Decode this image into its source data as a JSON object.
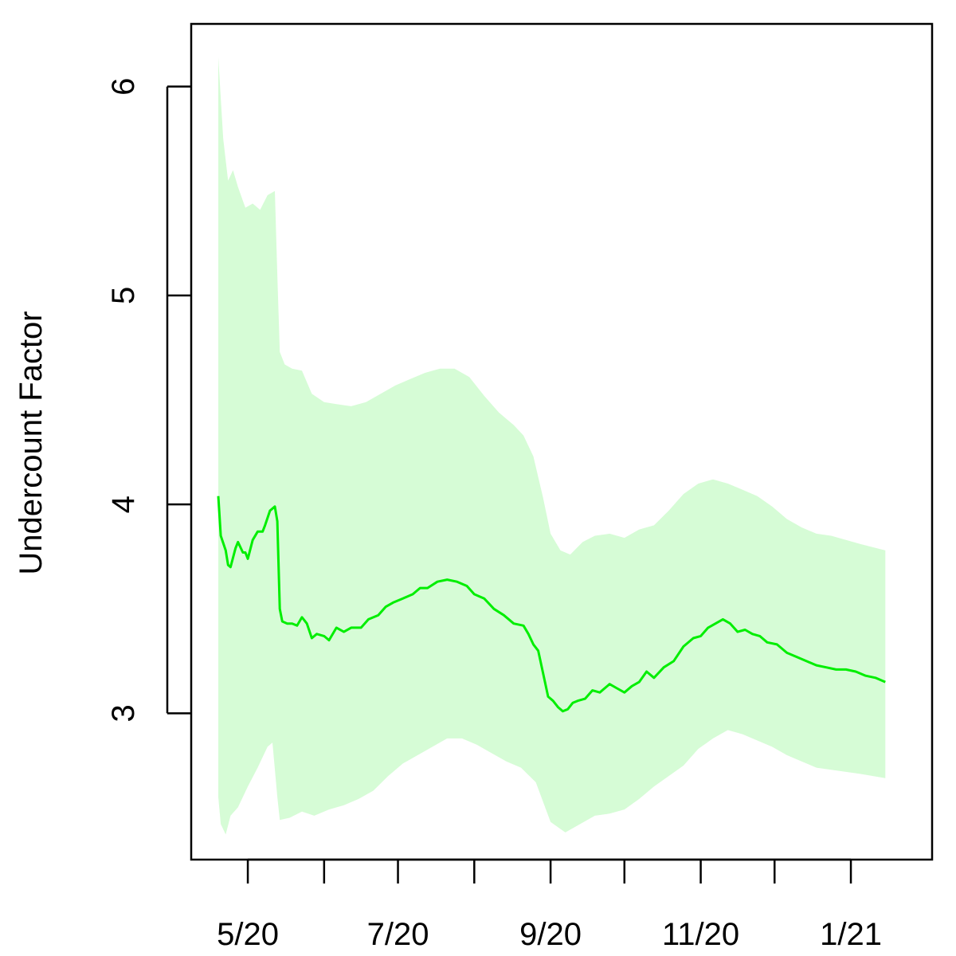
{
  "chart_data": {
    "type": "area",
    "title": "",
    "xlabel": "",
    "ylabel": "Undercount Factor",
    "ylim": [
      2.3,
      6.3
    ],
    "xlim": [
      "2020-04-08",
      "2021-02-03"
    ],
    "y_ticks": [
      3,
      4,
      5,
      6
    ],
    "x_ticks": [
      {
        "date": "2020-05-01",
        "label": "5/20"
      },
      {
        "date": "2020-06-01",
        "label": ""
      },
      {
        "date": "2020-07-01",
        "label": "7/20"
      },
      {
        "date": "2020-08-01",
        "label": ""
      },
      {
        "date": "2020-09-01",
        "label": "9/20"
      },
      {
        "date": "2020-10-01",
        "label": ""
      },
      {
        "date": "2020-11-01",
        "label": "11/20"
      },
      {
        "date": "2020-12-01",
        "label": ""
      },
      {
        "date": "2021-01-01",
        "label": "1/21"
      }
    ],
    "grid": false,
    "legend": "none",
    "colors": {
      "line": "#00ee00",
      "band": "#d6fcd6",
      "axis": "#000000"
    },
    "series": [
      {
        "role": "estimate",
        "points": [
          [
            "2020-04-19",
            4.04
          ],
          [
            "2020-04-20",
            3.85
          ],
          [
            "2020-04-22",
            3.78
          ],
          [
            "2020-04-23",
            3.71
          ],
          [
            "2020-04-24",
            3.7
          ],
          [
            "2020-04-26",
            3.79
          ],
          [
            "2020-04-27",
            3.82
          ],
          [
            "2020-04-29",
            3.77
          ],
          [
            "2020-04-30",
            3.77
          ],
          [
            "2020-05-01",
            3.74
          ],
          [
            "2020-05-03",
            3.83
          ],
          [
            "2020-05-05",
            3.87
          ],
          [
            "2020-05-07",
            3.87
          ],
          [
            "2020-05-08",
            3.9
          ],
          [
            "2020-05-10",
            3.97
          ],
          [
            "2020-05-12",
            3.99
          ],
          [
            "2020-05-13",
            3.92
          ],
          [
            "2020-05-14",
            3.5
          ],
          [
            "2020-05-15",
            3.44
          ],
          [
            "2020-05-17",
            3.43
          ],
          [
            "2020-05-19",
            3.43
          ],
          [
            "2020-05-21",
            3.42
          ],
          [
            "2020-05-23",
            3.46
          ],
          [
            "2020-05-25",
            3.43
          ],
          [
            "2020-05-27",
            3.36
          ],
          [
            "2020-05-29",
            3.38
          ],
          [
            "2020-06-01",
            3.37
          ],
          [
            "2020-06-03",
            3.35
          ],
          [
            "2020-06-06",
            3.41
          ],
          [
            "2020-06-09",
            3.39
          ],
          [
            "2020-06-12",
            3.41
          ],
          [
            "2020-06-16",
            3.41
          ],
          [
            "2020-06-19",
            3.45
          ],
          [
            "2020-06-23",
            3.47
          ],
          [
            "2020-06-26",
            3.51
          ],
          [
            "2020-06-29",
            3.53
          ],
          [
            "2020-07-03",
            3.55
          ],
          [
            "2020-07-07",
            3.57
          ],
          [
            "2020-07-10",
            3.6
          ],
          [
            "2020-07-13",
            3.6
          ],
          [
            "2020-07-17",
            3.63
          ],
          [
            "2020-07-21",
            3.64
          ],
          [
            "2020-07-25",
            3.63
          ],
          [
            "2020-07-29",
            3.61
          ],
          [
            "2020-08-01",
            3.57
          ],
          [
            "2020-08-05",
            3.55
          ],
          [
            "2020-08-09",
            3.5
          ],
          [
            "2020-08-13",
            3.47
          ],
          [
            "2020-08-17",
            3.43
          ],
          [
            "2020-08-21",
            3.42
          ],
          [
            "2020-08-23",
            3.38
          ],
          [
            "2020-08-25",
            3.33
          ],
          [
            "2020-08-27",
            3.3
          ],
          [
            "2020-08-29",
            3.19
          ],
          [
            "2020-08-31",
            3.08
          ],
          [
            "2020-09-02",
            3.06
          ],
          [
            "2020-09-04",
            3.03
          ],
          [
            "2020-09-06",
            3.01
          ],
          [
            "2020-09-08",
            3.02
          ],
          [
            "2020-09-10",
            3.05
          ],
          [
            "2020-09-12",
            3.06
          ],
          [
            "2020-09-15",
            3.07
          ],
          [
            "2020-09-18",
            3.11
          ],
          [
            "2020-09-21",
            3.1
          ],
          [
            "2020-09-25",
            3.14
          ],
          [
            "2020-09-28",
            3.12
          ],
          [
            "2020-10-01",
            3.1
          ],
          [
            "2020-10-04",
            3.13
          ],
          [
            "2020-10-07",
            3.15
          ],
          [
            "2020-10-10",
            3.2
          ],
          [
            "2020-10-13",
            3.17
          ],
          [
            "2020-10-17",
            3.22
          ],
          [
            "2020-10-21",
            3.25
          ],
          [
            "2020-10-25",
            3.32
          ],
          [
            "2020-10-29",
            3.36
          ],
          [
            "2020-11-01",
            3.37
          ],
          [
            "2020-11-04",
            3.41
          ],
          [
            "2020-11-07",
            3.43
          ],
          [
            "2020-11-10",
            3.45
          ],
          [
            "2020-11-13",
            3.43
          ],
          [
            "2020-11-16",
            3.39
          ],
          [
            "2020-11-19",
            3.4
          ],
          [
            "2020-11-22",
            3.38
          ],
          [
            "2020-11-25",
            3.37
          ],
          [
            "2020-11-28",
            3.34
          ],
          [
            "2020-12-02",
            3.33
          ],
          [
            "2020-12-06",
            3.29
          ],
          [
            "2020-12-10",
            3.27
          ],
          [
            "2020-12-14",
            3.25
          ],
          [
            "2020-12-18",
            3.23
          ],
          [
            "2020-12-22",
            3.22
          ],
          [
            "2020-12-26",
            3.21
          ],
          [
            "2020-12-30",
            3.21
          ],
          [
            "2021-01-03",
            3.2
          ],
          [
            "2021-01-07",
            3.18
          ],
          [
            "2021-01-11",
            3.17
          ],
          [
            "2021-01-15",
            3.15
          ]
        ]
      },
      {
        "role": "band-upper",
        "points": [
          [
            "2020-04-19",
            6.14
          ],
          [
            "2020-04-21",
            5.75
          ],
          [
            "2020-04-23",
            5.55
          ],
          [
            "2020-04-25",
            5.6
          ],
          [
            "2020-04-27",
            5.52
          ],
          [
            "2020-04-30",
            5.42
          ],
          [
            "2020-05-03",
            5.44
          ],
          [
            "2020-05-06",
            5.41
          ],
          [
            "2020-05-09",
            5.48
          ],
          [
            "2020-05-12",
            5.5
          ],
          [
            "2020-05-13",
            5.1
          ],
          [
            "2020-05-14",
            4.73
          ],
          [
            "2020-05-16",
            4.67
          ],
          [
            "2020-05-19",
            4.65
          ],
          [
            "2020-05-23",
            4.64
          ],
          [
            "2020-05-27",
            4.53
          ],
          [
            "2020-06-01",
            4.49
          ],
          [
            "2020-06-06",
            4.48
          ],
          [
            "2020-06-12",
            4.47
          ],
          [
            "2020-06-18",
            4.49
          ],
          [
            "2020-06-24",
            4.53
          ],
          [
            "2020-06-30",
            4.57
          ],
          [
            "2020-07-06",
            4.6
          ],
          [
            "2020-07-12",
            4.63
          ],
          [
            "2020-07-18",
            4.65
          ],
          [
            "2020-07-24",
            4.65
          ],
          [
            "2020-07-30",
            4.61
          ],
          [
            "2020-08-05",
            4.52
          ],
          [
            "2020-08-11",
            4.44
          ],
          [
            "2020-08-17",
            4.38
          ],
          [
            "2020-08-21",
            4.33
          ],
          [
            "2020-08-25",
            4.23
          ],
          [
            "2020-08-29",
            4.03
          ],
          [
            "2020-09-01",
            3.86
          ],
          [
            "2020-09-05",
            3.78
          ],
          [
            "2020-09-09",
            3.76
          ],
          [
            "2020-09-14",
            3.82
          ],
          [
            "2020-09-19",
            3.85
          ],
          [
            "2020-09-25",
            3.86
          ],
          [
            "2020-10-01",
            3.84
          ],
          [
            "2020-10-07",
            3.88
          ],
          [
            "2020-10-13",
            3.9
          ],
          [
            "2020-10-19",
            3.97
          ],
          [
            "2020-10-25",
            4.05
          ],
          [
            "2020-10-31",
            4.1
          ],
          [
            "2020-11-06",
            4.12
          ],
          [
            "2020-11-12",
            4.1
          ],
          [
            "2020-11-18",
            4.07
          ],
          [
            "2020-11-24",
            4.04
          ],
          [
            "2020-11-30",
            3.99
          ],
          [
            "2020-12-06",
            3.93
          ],
          [
            "2020-12-12",
            3.89
          ],
          [
            "2020-12-18",
            3.86
          ],
          [
            "2020-12-24",
            3.85
          ],
          [
            "2020-12-30",
            3.83
          ],
          [
            "2021-01-05",
            3.81
          ],
          [
            "2021-01-15",
            3.78
          ]
        ]
      },
      {
        "role": "band-lower",
        "points": [
          [
            "2020-04-19",
            2.6
          ],
          [
            "2020-04-20",
            2.47
          ],
          [
            "2020-04-22",
            2.42
          ],
          [
            "2020-04-24",
            2.51
          ],
          [
            "2020-04-27",
            2.55
          ],
          [
            "2020-05-01",
            2.65
          ],
          [
            "2020-05-05",
            2.74
          ],
          [
            "2020-05-09",
            2.84
          ],
          [
            "2020-05-11",
            2.86
          ],
          [
            "2020-05-13",
            2.6
          ],
          [
            "2020-05-14",
            2.49
          ],
          [
            "2020-05-18",
            2.5
          ],
          [
            "2020-05-23",
            2.53
          ],
          [
            "2020-05-28",
            2.51
          ],
          [
            "2020-06-03",
            2.54
          ],
          [
            "2020-06-09",
            2.56
          ],
          [
            "2020-06-15",
            2.59
          ],
          [
            "2020-06-21",
            2.63
          ],
          [
            "2020-06-27",
            2.7
          ],
          [
            "2020-07-03",
            2.76
          ],
          [
            "2020-07-09",
            2.8
          ],
          [
            "2020-07-15",
            2.84
          ],
          [
            "2020-07-21",
            2.88
          ],
          [
            "2020-07-27",
            2.88
          ],
          [
            "2020-08-02",
            2.85
          ],
          [
            "2020-08-08",
            2.81
          ],
          [
            "2020-08-14",
            2.77
          ],
          [
            "2020-08-20",
            2.74
          ],
          [
            "2020-08-26",
            2.67
          ],
          [
            "2020-09-01",
            2.48
          ],
          [
            "2020-09-07",
            2.43
          ],
          [
            "2020-09-13",
            2.47
          ],
          [
            "2020-09-19",
            2.51
          ],
          [
            "2020-09-25",
            2.52
          ],
          [
            "2020-10-01",
            2.54
          ],
          [
            "2020-10-07",
            2.59
          ],
          [
            "2020-10-13",
            2.65
          ],
          [
            "2020-10-19",
            2.7
          ],
          [
            "2020-10-25",
            2.75
          ],
          [
            "2020-10-31",
            2.83
          ],
          [
            "2020-11-06",
            2.88
          ],
          [
            "2020-11-12",
            2.92
          ],
          [
            "2020-11-18",
            2.9
          ],
          [
            "2020-11-24",
            2.87
          ],
          [
            "2020-11-30",
            2.84
          ],
          [
            "2020-12-06",
            2.8
          ],
          [
            "2020-12-12",
            2.77
          ],
          [
            "2020-12-18",
            2.74
          ],
          [
            "2020-12-24",
            2.73
          ],
          [
            "2020-12-30",
            2.72
          ],
          [
            "2021-01-05",
            2.71
          ],
          [
            "2021-01-15",
            2.69
          ]
        ]
      }
    ]
  }
}
